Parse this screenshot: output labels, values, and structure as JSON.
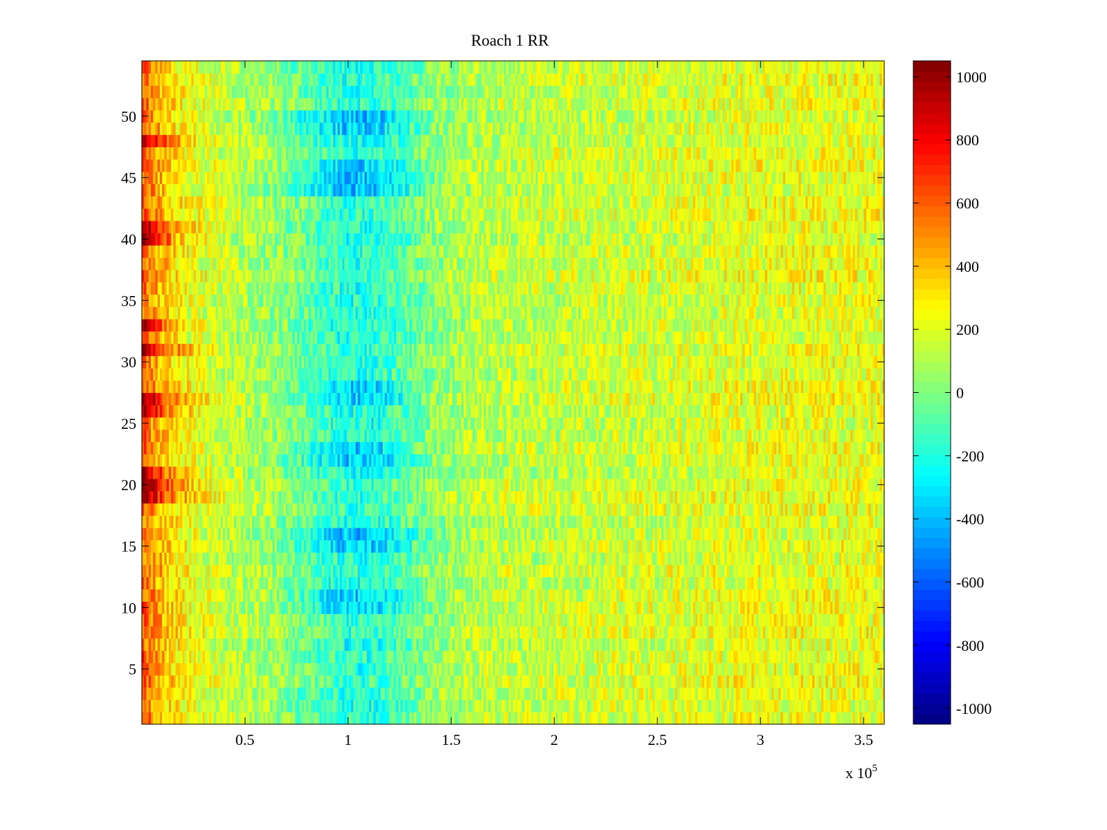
{
  "chart_data": {
    "type": "heatmap",
    "title": "Roach 1 RR",
    "xlabel": "",
    "ylabel": "",
    "x_exponent_label": {
      "base": "x 10",
      "exponent": "5"
    },
    "xlim": [
      0,
      3.6
    ],
    "ylim": [
      0.5,
      54.5
    ],
    "x_ticks": [
      {
        "value": 0.5,
        "label": "0.5"
      },
      {
        "value": 1,
        "label": "1"
      },
      {
        "value": 1.5,
        "label": "1.5"
      },
      {
        "value": 2,
        "label": "2"
      },
      {
        "value": 2.5,
        "label": "2.5"
      },
      {
        "value": 3,
        "label": "3"
      },
      {
        "value": 3.5,
        "label": "3.5"
      }
    ],
    "y_ticks": [
      {
        "value": 5,
        "label": "5"
      },
      {
        "value": 10,
        "label": "10"
      },
      {
        "value": 15,
        "label": "15"
      },
      {
        "value": 20,
        "label": "20"
      },
      {
        "value": 25,
        "label": "25"
      },
      {
        "value": 30,
        "label": "30"
      },
      {
        "value": 35,
        "label": "35"
      },
      {
        "value": 40,
        "label": "40"
      },
      {
        "value": 45,
        "label": "45"
      },
      {
        "value": 50,
        "label": "50"
      }
    ],
    "rows": 54,
    "colormap": "jet",
    "colorbar": {
      "range": [
        -1050,
        1050
      ],
      "ticks": [
        {
          "value": 1000,
          "label": "1000"
        },
        {
          "value": 800,
          "label": "800"
        },
        {
          "value": 600,
          "label": "600"
        },
        {
          "value": 400,
          "label": "400"
        },
        {
          "value": 200,
          "label": "200"
        },
        {
          "value": 0,
          "label": "0"
        },
        {
          "value": -200,
          "label": "-200"
        },
        {
          "value": -400,
          "label": "-400"
        },
        {
          "value": -600,
          "label": "-600"
        },
        {
          "value": -800,
          "label": "-800"
        },
        {
          "value": -1000,
          "label": "-1000"
        }
      ]
    },
    "pattern": {
      "description": "Approximate field: high values at left edge (x<0.3e5), low values around x≈1e5, gradual rise to the right",
      "left_edge_mean": 450,
      "trough_center_x": 1.05,
      "trough_mean": -350,
      "right_side_mean": 180,
      "hot_rows": [
        27,
        26,
        21,
        20,
        19,
        41,
        40,
        48,
        33,
        31
      ],
      "cool_rows": [
        50,
        49,
        46,
        45,
        44,
        28,
        27,
        23,
        22,
        16,
        15,
        11,
        10
      ],
      "noise_amplitude": 180
    }
  }
}
